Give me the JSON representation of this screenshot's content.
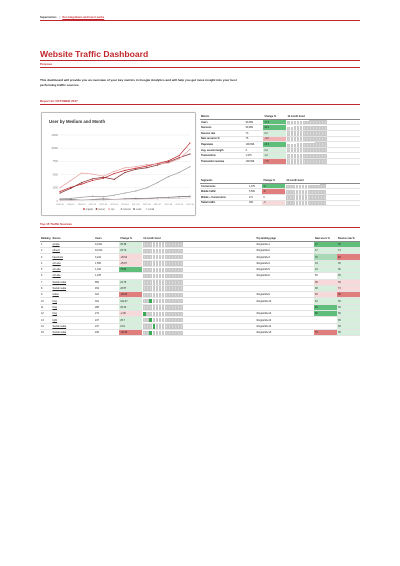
{
  "topbar": {
    "brand": "Supermetrics",
    "separator": "|",
    "link": "Our integrations and how it works"
  },
  "title": "Website Traffic Dashboard",
  "purpose": {
    "heading": "Purpose",
    "text": "This dashboard will provide you an overview of your key metrics in Google Analytics and will help you get more insight into your best performing traffic sources."
  },
  "report": {
    "heading": "Report for OCTOBER 2017",
    "chart": {
      "type": "line",
      "title": "User by Medium and Month",
      "categories": [
        "2016-10",
        "2016-11",
        "2016-12",
        "2017-01",
        "2017-02",
        "2017-03",
        "2017-04",
        "2017-05",
        "2017-06",
        "2017-07",
        "2017-08",
        "2017-09",
        "2017-10"
      ],
      "ylim": [
        0,
        12500
      ],
      "yticks": [
        "12500",
        "10000",
        "7500",
        "5000",
        "2500",
        "0"
      ],
      "series": [
        {
          "name": "organic",
          "color": "#c0262d",
          "values": [
            1800,
            2600,
            3200,
            3900,
            4300,
            5200,
            5800,
            6200,
            6600,
            7100,
            7600,
            8600,
            11000
          ]
        },
        {
          "name": "(none)",
          "color": "#7f2b2b",
          "values": [
            1500,
            2400,
            3500,
            4200,
            4500,
            4100,
            5400,
            6000,
            6300,
            6800,
            7400,
            8200,
            8900
          ]
        },
        {
          "name": "cpc",
          "color": "#e8a0a0",
          "values": [
            2500,
            3900,
            5300,
            5100,
            4700,
            5600,
            6300,
            6500,
            6900,
            7000,
            7200,
            8000,
            9800
          ]
        },
        {
          "name": "referral",
          "color": "#999999",
          "values": [
            400,
            500,
            700,
            900,
            800,
            1100,
            1500,
            1900,
            2500,
            3500,
            4600,
            5400,
            6500
          ]
        },
        {
          "name": "email",
          "color": "#6a6a6a",
          "values": [
            200,
            300,
            200,
            300,
            400,
            300,
            400,
            500,
            500,
            600,
            700,
            800,
            900
          ]
        },
        {
          "name": "social",
          "color": "#d9c6c6",
          "values": [
            100,
            100,
            200,
            200,
            200,
            300,
            300,
            300,
            400,
            400,
            500,
            500,
            600
          ]
        }
      ]
    },
    "metrics": {
      "headers": [
        "Metrics",
        "",
        "Change %",
        "12 month trend"
      ],
      "rows": [
        {
          "name": "Users",
          "value": "99,999",
          "change": "17.6",
          "cls": "pos-strong",
          "trend": [
            4,
            4,
            5,
            5,
            5,
            5,
            5,
            6,
            6,
            6,
            6,
            6,
            6
          ]
        },
        {
          "name": "Sessions",
          "value": "99,999",
          "change": "20.0",
          "cls": "pos-strong",
          "trend": [
            4,
            4,
            5,
            5,
            5,
            5,
            5,
            5,
            6,
            6,
            6,
            6,
            6
          ]
        },
        {
          "name": "Session rate",
          "value": "73",
          "change": "0.2",
          "cls": "pos-light",
          "trend": [
            5,
            5,
            5,
            5,
            5,
            5,
            5,
            5,
            5,
            5,
            5,
            5,
            5
          ]
        },
        {
          "name": "New sessions %",
          "value": "76",
          "change": "-3.0",
          "cls": "neg",
          "trend": [
            5,
            5,
            5,
            5,
            5,
            5,
            5,
            5,
            5,
            5,
            5,
            5,
            5
          ]
        },
        {
          "name": "Pageviews",
          "value": "199,999",
          "change": "23.6",
          "cls": "pos-strong",
          "trend": [
            4,
            4,
            4,
            5,
            5,
            5,
            5,
            5,
            5,
            6,
            6,
            6,
            6
          ]
        },
        {
          "name": "Avg. session length",
          "value": "2",
          "change": "0.2",
          "cls": "pos-light",
          "trend": [
            5,
            5,
            5,
            5,
            5,
            5,
            5,
            5,
            5,
            5,
            5,
            5,
            5
          ]
        },
        {
          "name": "Transactions",
          "value": "1,975",
          "change": "1.2",
          "cls": "pos-light",
          "trend": [
            5,
            5,
            5,
            5,
            5,
            5,
            5,
            5,
            5,
            5,
            5,
            5,
            5
          ]
        },
        {
          "name": "Transaction revenue",
          "value": "199,999",
          "change": "-7.5",
          "cls": "neg-strong",
          "trend": [
            5,
            5,
            5,
            5,
            5,
            5,
            5,
            5,
            5,
            5,
            5,
            5,
            5
          ]
        }
      ]
    },
    "segments": {
      "headers": [
        "Segments",
        "",
        "Change %",
        "12 month trend"
      ],
      "rows": [
        {
          "name": "Conversions",
          "value": "1,975",
          "change": "11",
          "cls": "pos-strong",
          "trend": [
            4,
            4,
            4,
            5,
            5,
            5,
            5,
            5,
            5,
            5,
            5,
            6,
            6
          ]
        },
        {
          "name": "Mobile traffic",
          "value": "5,500",
          "change": "-8",
          "cls": "neg-strong",
          "trend": [
            5,
            5,
            5,
            5,
            5,
            5,
            5,
            5,
            5,
            5,
            5,
            5,
            5
          ]
        },
        {
          "name": "Mobile + Conversions",
          "value": "271",
          "change": "0",
          "cls": "",
          "trend": [
            5,
            5,
            5,
            5,
            5,
            5,
            5,
            5,
            5,
            5,
            5,
            5,
            5
          ]
        },
        {
          "name": "Tablet traffic",
          "value": "365",
          "change": "-3",
          "cls": "neg-light",
          "trend": [
            5,
            5,
            5,
            5,
            5,
            5,
            5,
            5,
            5,
            5,
            5,
            5,
            5
          ]
        }
      ]
    }
  },
  "sources": {
    "heading": "Top 15 Traffic Sources",
    "headers": [
      "Ranking",
      "Source",
      "Users",
      "Change %",
      "12 month trend",
      "Top landing page",
      "New users %",
      "Bounce rate %"
    ],
    "rows": [
      {
        "rank": "1",
        "source": "google",
        "users": "12,621",
        "change": "25.38",
        "cls": "pos-light",
        "hl": -1,
        "page": "/blog/article1",
        "nu": "27",
        "nu_cls": "pos-strong",
        "br": "35",
        "br_cls": "pos-strong"
      },
      {
        "rank": "2",
        "source": "(direct)",
        "users": "10,014",
        "change": "18.70",
        "cls": "pos-light",
        "hl": -1,
        "page": "/blog/article2",
        "nu": "47",
        "nu_cls": "pos-light",
        "br": "73",
        "br_cls": "pos-light"
      },
      {
        "rank": "3",
        "source": "Facebook",
        "users": "3,244",
        "change": "-29.52",
        "cls": "neg-light",
        "hl": -1,
        "page": "/blog/article3",
        "nu": "76",
        "nu_cls": "pos",
        "br": "48",
        "br_cls": "neg-strong"
      },
      {
        "rank": "4",
        "source": "cdn.site",
        "users": "1,565",
        "change": "-25.87",
        "cls": "neg-light",
        "hl": -1,
        "page": "/blog/article4",
        "nu": "34",
        "nu_cls": "pos-light",
        "br": "35",
        "br_cls": "pos-light"
      },
      {
        "rank": "5",
        "source": "cdn.site",
        "users": "1,344",
        "change": "79.54",
        "cls": "pos-strong",
        "hl": -1,
        "page": "/blog/article5",
        "nu": "24",
        "nu_cls": "pos-light",
        "br": "36",
        "br_cls": "pos-light"
      },
      {
        "rank": "6",
        "source": "cdn.site",
        "users": "1,078",
        "change": "",
        "cls": "",
        "hl": -1,
        "page": "/blog/article6",
        "nu": "56",
        "nu_cls": "",
        "br": "35",
        "br_cls": "pos-light"
      },
      {
        "rank": "7",
        "source": "Social media",
        "users": "856",
        "change": "24.76",
        "cls": "pos-light",
        "hl": -1,
        "page": "",
        "nu": "38",
        "nu_cls": "neg-light",
        "br": "39",
        "br_cls": "neg-light"
      },
      {
        "rank": "8",
        "source": "Social media",
        "users": "454",
        "change": "23.57",
        "cls": "pos-light",
        "hl": -1,
        "page": "",
        "nu": "38",
        "nu_cls": "pos-light",
        "br": "73",
        "br_cls": "neg-light"
      },
      {
        "rank": "9",
        "source": "twitter",
        "users": "321",
        "change": "-28.30",
        "cls": "neg-strong",
        "hl": -1,
        "page": "/blog/article9",
        "nu": "45",
        "nu_cls": "neg-light",
        "br": "36",
        "br_cls": "neg-strong"
      },
      {
        "rank": "10",
        "source": "bing",
        "users": "301",
        "change": "102.27",
        "cls": "pos-light",
        "hl": 2,
        "page": "/blog/article10",
        "nu": "61",
        "nu_cls": "pos-light",
        "br": "35",
        "br_cls": "pos-light"
      },
      {
        "rank": "11",
        "source": "bing",
        "users": "288",
        "change": "25.32",
        "cls": "pos-light",
        "hl": -1,
        "page": "",
        "nu": "83",
        "nu_cls": "pos-strong",
        "br": "35",
        "br_cls": "pos-light"
      },
      {
        "rank": "12",
        "source": "bing",
        "users": "272",
        "change": "-2.36",
        "cls": "neg-light",
        "hl": 0,
        "page": "/blog/article12",
        "nu": "80",
        "nu_cls": "pos-strong",
        "br": "35",
        "br_cls": "pos-light"
      },
      {
        "rank": "13",
        "source": "bgfb",
        "users": "247",
        "change": "25.7",
        "cls": "pos-light",
        "hl": 2,
        "page": "/blog/article13",
        "nu": "",
        "nu_cls": "",
        "br": "35",
        "br_cls": "pos-light"
      },
      {
        "rank": "14",
        "source": "Social media",
        "users": "247",
        "change": "0.61",
        "cls": "pos-light",
        "hl": 3,
        "page": "/blog/article14",
        "nu": "",
        "nu_cls": "",
        "br": "35",
        "br_cls": "pos-light"
      },
      {
        "rank": "15",
        "source": "Social media",
        "users": "225",
        "change": "-29.98",
        "cls": "neg-strong",
        "hl": 2,
        "page": "/blog/article15",
        "nu": "79",
        "nu_cls": "neg-strong",
        "br": "35",
        "br_cls": "pos-light"
      }
    ]
  }
}
